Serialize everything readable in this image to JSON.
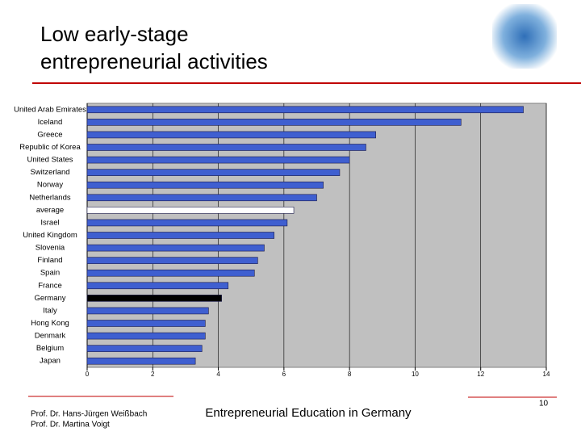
{
  "header": {
    "title_lines": [
      "Low early-stage",
      "entrepreneurial activities"
    ]
  },
  "chart_data": {
    "type": "bar",
    "orientation": "horizontal",
    "categories": [
      "United Arab Emirates",
      "Iceland",
      "Greece",
      "Republic of Korea",
      "United States",
      "Switzerland",
      "Norway",
      "Netherlands",
      "average",
      "Israel",
      "United Kingdom",
      "Slovenia",
      "Finland",
      "Spain",
      "France",
      "Germany",
      "Italy",
      "Hong Kong",
      "Denmark",
      "Belgium",
      "Japan"
    ],
    "values": [
      13.3,
      11.4,
      8.8,
      8.5,
      8.0,
      7.7,
      7.2,
      7.0,
      6.3,
      6.1,
      5.7,
      5.4,
      5.2,
      5.1,
      4.3,
      4.1,
      3.7,
      3.6,
      3.6,
      3.5,
      3.3
    ],
    "colors": [
      "#3f5fd0",
      "#3f5fd0",
      "#3f5fd0",
      "#3f5fd0",
      "#3f5fd0",
      "#3f5fd0",
      "#3f5fd0",
      "#3f5fd0",
      "#ffffff",
      "#3f5fd0",
      "#3f5fd0",
      "#3f5fd0",
      "#3f5fd0",
      "#3f5fd0",
      "#3f5fd0",
      "#000000",
      "#3f5fd0",
      "#3f5fd0",
      "#3f5fd0",
      "#3f5fd0",
      "#3f5fd0"
    ],
    "xlim": [
      0,
      14
    ],
    "xticks": [
      0,
      2,
      4,
      6,
      8,
      10,
      12,
      14
    ],
    "grid": true
  },
  "footer": {
    "authors": [
      "Prof. Dr. Hans-Jürgen Weißbach",
      "Prof. Dr. Martina Voigt"
    ],
    "center": "Entrepreneurial Education in Germany",
    "page": "10"
  }
}
